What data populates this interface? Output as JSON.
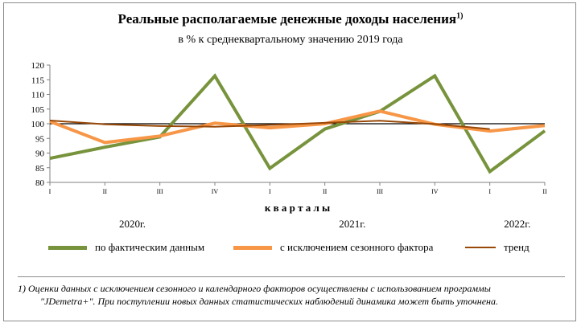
{
  "chart_data": {
    "type": "line",
    "title": "Реальные располагаемые денежные доходы населения",
    "title_footnote_mark": "1)",
    "subtitle": "в % к среднеквартальному значению 2019 года",
    "xlabel": "к в а р т а л ы",
    "categories": [
      "I",
      "II",
      "III",
      "IV",
      "I",
      "II",
      "III",
      "IV",
      "I",
      "II"
    ],
    "year_labels": [
      {
        "label": "2020г.",
        "span": [
          0,
          3
        ]
      },
      {
        "label": "2021г.",
        "span": [
          4,
          7
        ]
      },
      {
        "label": "2022г.",
        "span": [
          8,
          9
        ]
      }
    ],
    "ylim": [
      80,
      120
    ],
    "yticks": [
      80,
      85,
      90,
      95,
      100,
      105,
      110,
      115,
      120
    ],
    "reference_line": 100,
    "grid": false,
    "legend_position": "bottom",
    "series": [
      {
        "name": "по фактическим  данным",
        "color": "#77933c",
        "width": 4,
        "values": [
          88.2,
          92.0,
          95.5,
          116.3,
          84.8,
          98.2,
          104.2,
          116.3,
          83.7,
          97.6
        ]
      },
      {
        "name": "с исключением  сезонного фактора",
        "color": "#f79646",
        "width": 4,
        "values": [
          100.8,
          93.6,
          95.8,
          100.2,
          98.6,
          100.0,
          104.3,
          99.8,
          97.5,
          99.4
        ]
      },
      {
        "name": "тренд",
        "color": "#984807",
        "width": 2,
        "values": [
          101.1,
          99.8,
          99.2,
          99.0,
          99.6,
          100.3,
          101.0,
          99.9,
          98.2,
          null
        ]
      }
    ]
  },
  "footnote": {
    "line1": "1) Оценки данных с исключением сезонного и календарного факторов осуществлены с использованием программы",
    "line2": "\"JDemetra+\".  При поступлении новых данных статистических наблюдений динамика может быть уточнена."
  }
}
